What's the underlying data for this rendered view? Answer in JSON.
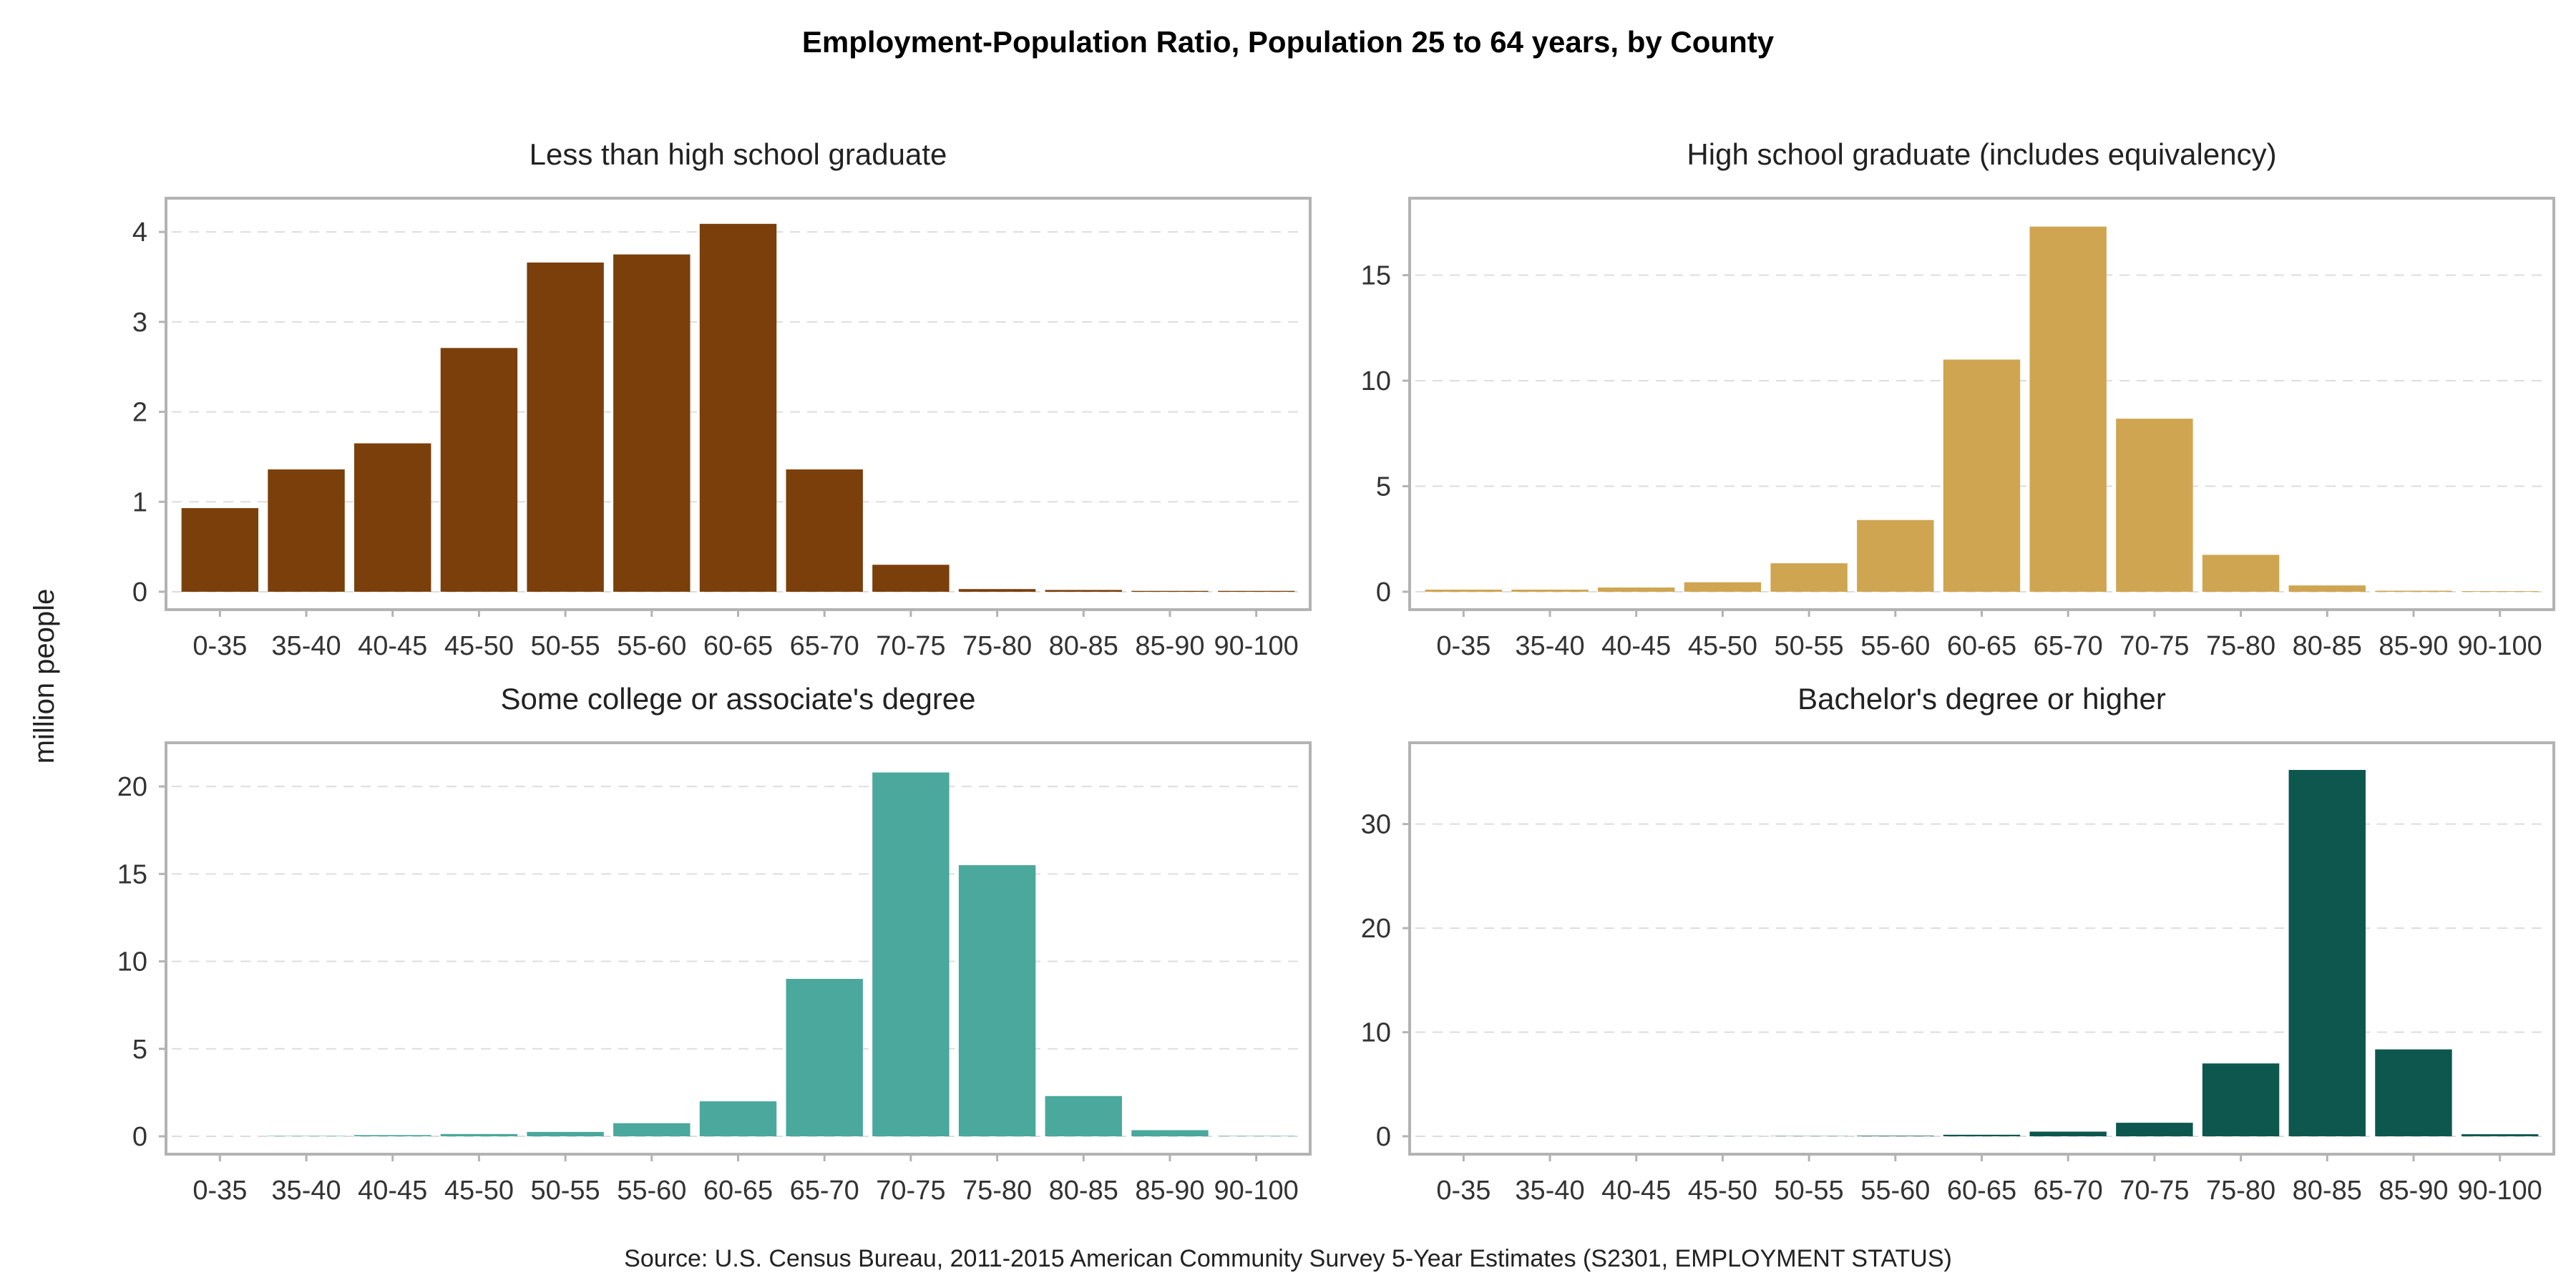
{
  "chart_data": {
    "type": "bar",
    "title": "Employment-Population Ratio, Population 25 to 64 years, by County",
    "ylabel": "million people",
    "source": "Source: U.S. Census Bureau, 2011-2015 American Community Survey 5-Year Estimates (S2301, EMPLOYMENT STATUS)",
    "categories": [
      "0-35",
      "35-40",
      "40-45",
      "45-50",
      "50-55",
      "55-60",
      "60-65",
      "65-70",
      "70-75",
      "75-80",
      "80-85",
      "85-90",
      "90-100"
    ],
    "grid": true,
    "panels": [
      {
        "title": "Less than high school graduate",
        "color": "#7a3f0a",
        "ylim": [
          0,
          4.2
        ],
        "yticks": [
          0,
          1,
          2,
          3,
          4
        ],
        "values": [
          0.93,
          1.36,
          1.65,
          2.71,
          3.66,
          3.75,
          4.09,
          1.36,
          0.3,
          0.03,
          0.02,
          0.01,
          0.01
        ]
      },
      {
        "title": "High school graduate (includes equivalency)",
        "color": "#cfa551",
        "ylim": [
          0,
          17.9
        ],
        "yticks": [
          0,
          5,
          10,
          15
        ],
        "values": [
          0.1,
          0.1,
          0.2,
          0.45,
          1.35,
          3.4,
          11.0,
          17.3,
          8.2,
          1.75,
          0.3,
          0.05,
          0.03
        ]
      },
      {
        "title": "Some college or associate's degree",
        "color": "#4aa89c",
        "ylim": [
          0,
          21.6
        ],
        "yticks": [
          0,
          5,
          10,
          15,
          20
        ],
        "values": [
          0.0,
          0.02,
          0.07,
          0.13,
          0.25,
          0.75,
          2.0,
          9.0,
          20.8,
          15.5,
          2.3,
          0.35,
          0.02
        ]
      },
      {
        "title": "Bachelor's degree or higher",
        "color": "#0d574f",
        "ylim": [
          0,
          36.3
        ],
        "yticks": [
          0,
          10,
          20,
          30
        ],
        "values": [
          0.0,
          0.0,
          0.0,
          0.01,
          0.02,
          0.05,
          0.15,
          0.45,
          1.3,
          7.0,
          35.2,
          8.35,
          0.2
        ]
      }
    ]
  }
}
